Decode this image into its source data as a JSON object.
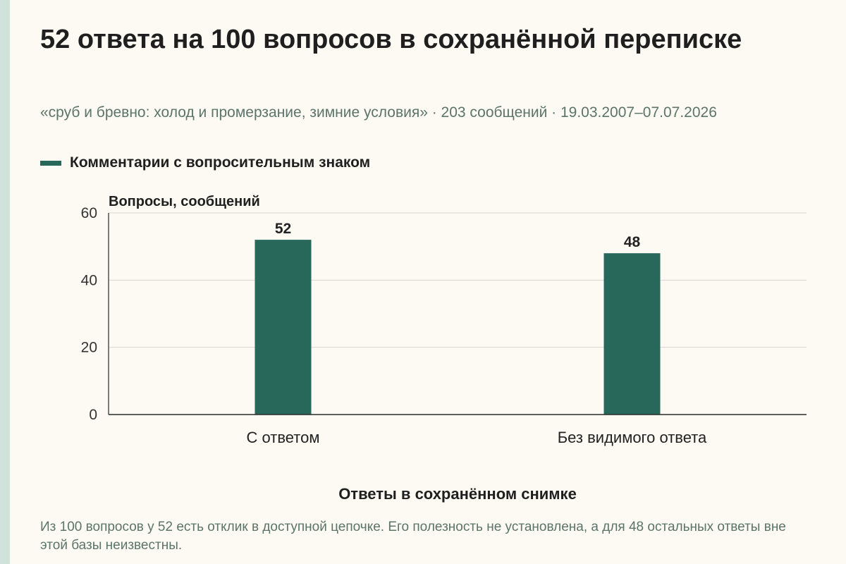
{
  "header": {
    "title": "52 ответа на 100 вопросов в сохранённой переписке",
    "subtitle": "«сруб и бревно: холод и промерзание, зимние условия» · 203 сообщений · 19.03.2007–07.07.2026"
  },
  "footnote": "Из 100 вопросов у 52 есть отклик в доступной цепочке. Его полезность не установлена, а для 48 остальных ответы вне этой базы неизвестны.",
  "colors": {
    "bar": "#27685a",
    "background": "#fcfaf2",
    "accent_strip": "#cfe3dc"
  },
  "chart_data": {
    "type": "bar",
    "categories": [
      "С ответом",
      "Без видимого ответа"
    ],
    "series": [
      {
        "name": "Комментарии с вопросительным знаком",
        "values": [
          52,
          48
        ]
      }
    ],
    "ylabel": "Вопросы, сообщений",
    "xlabel": "Ответы в сохранённом снимке",
    "ylim": [
      0,
      60
    ],
    "yticks": [
      0,
      20,
      40,
      60
    ],
    "grid": true,
    "legend_position": "top-left",
    "data_labels": true
  }
}
